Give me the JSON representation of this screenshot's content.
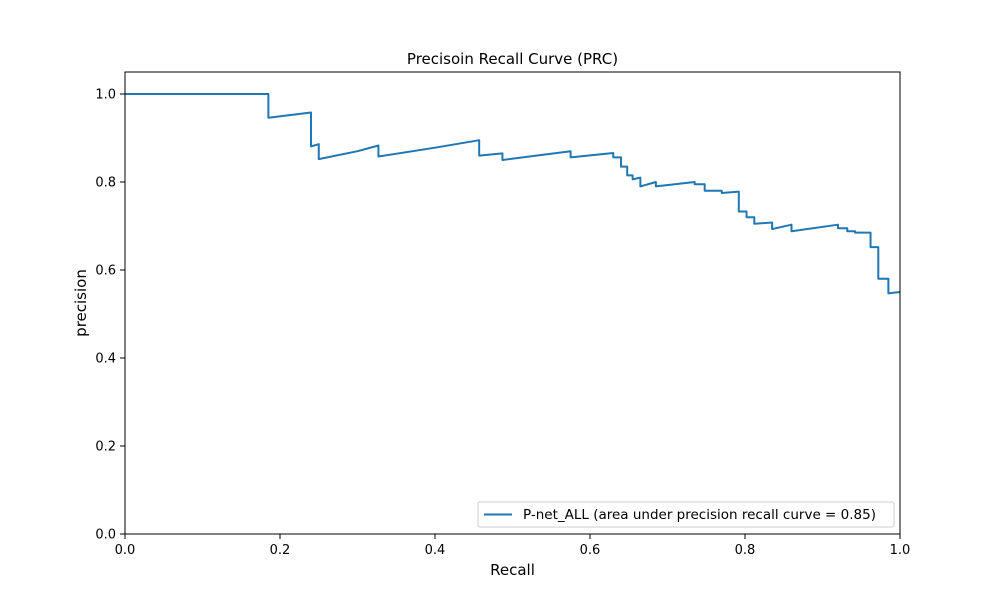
{
  "chart_data": {
    "type": "line",
    "title": "Precisoin Recall Curve (PRC)",
    "xlabel": "Recall",
    "ylabel": "precision",
    "xlim": [
      0,
      1
    ],
    "ylim": [
      0,
      1.05
    ],
    "xticks": [
      0.0,
      0.2,
      0.4,
      0.6,
      0.8,
      1.0
    ],
    "yticks": [
      0.0,
      0.2,
      0.4,
      0.6,
      0.8,
      1.0
    ],
    "xtick_labels": [
      "0.0",
      "0.2",
      "0.4",
      "0.6",
      "0.8",
      "1.0"
    ],
    "ytick_labels": [
      "0.0",
      "0.2",
      "0.4",
      "0.6",
      "0.8",
      "1.0"
    ],
    "grid": false,
    "legend_position": "lower-right",
    "series": [
      {
        "name": "P-net_ALL (area under precision recall curve = 0.85)",
        "color": "#1f77b4",
        "x": [
          0.0,
          0.185,
          0.185,
          0.24,
          0.24,
          0.25,
          0.25,
          0.3,
          0.327,
          0.327,
          0.4,
          0.457,
          0.457,
          0.487,
          0.487,
          0.575,
          0.575,
          0.63,
          0.63,
          0.64,
          0.64,
          0.648,
          0.648,
          0.655,
          0.655,
          0.665,
          0.665,
          0.685,
          0.685,
          0.735,
          0.735,
          0.748,
          0.748,
          0.77,
          0.77,
          0.792,
          0.792,
          0.802,
          0.802,
          0.812,
          0.812,
          0.835,
          0.835,
          0.86,
          0.86,
          0.92,
          0.92,
          0.932,
          0.932,
          0.942,
          0.942,
          0.952,
          0.952,
          0.962,
          0.962,
          0.972,
          0.972,
          0.985,
          0.985,
          1.0
        ],
        "y": [
          1.0,
          1.0,
          0.946,
          0.958,
          0.881,
          0.886,
          0.852,
          0.87,
          0.883,
          0.858,
          0.878,
          0.895,
          0.86,
          0.865,
          0.85,
          0.87,
          0.856,
          0.866,
          0.856,
          0.856,
          0.835,
          0.835,
          0.815,
          0.815,
          0.806,
          0.81,
          0.79,
          0.8,
          0.79,
          0.8,
          0.795,
          0.795,
          0.78,
          0.78,
          0.775,
          0.778,
          0.733,
          0.733,
          0.72,
          0.72,
          0.705,
          0.708,
          0.693,
          0.703,
          0.688,
          0.703,
          0.695,
          0.695,
          0.688,
          0.688,
          0.685,
          0.685,
          0.685,
          0.685,
          0.652,
          0.652,
          0.58,
          0.58,
          0.547,
          0.55
        ]
      }
    ]
  }
}
